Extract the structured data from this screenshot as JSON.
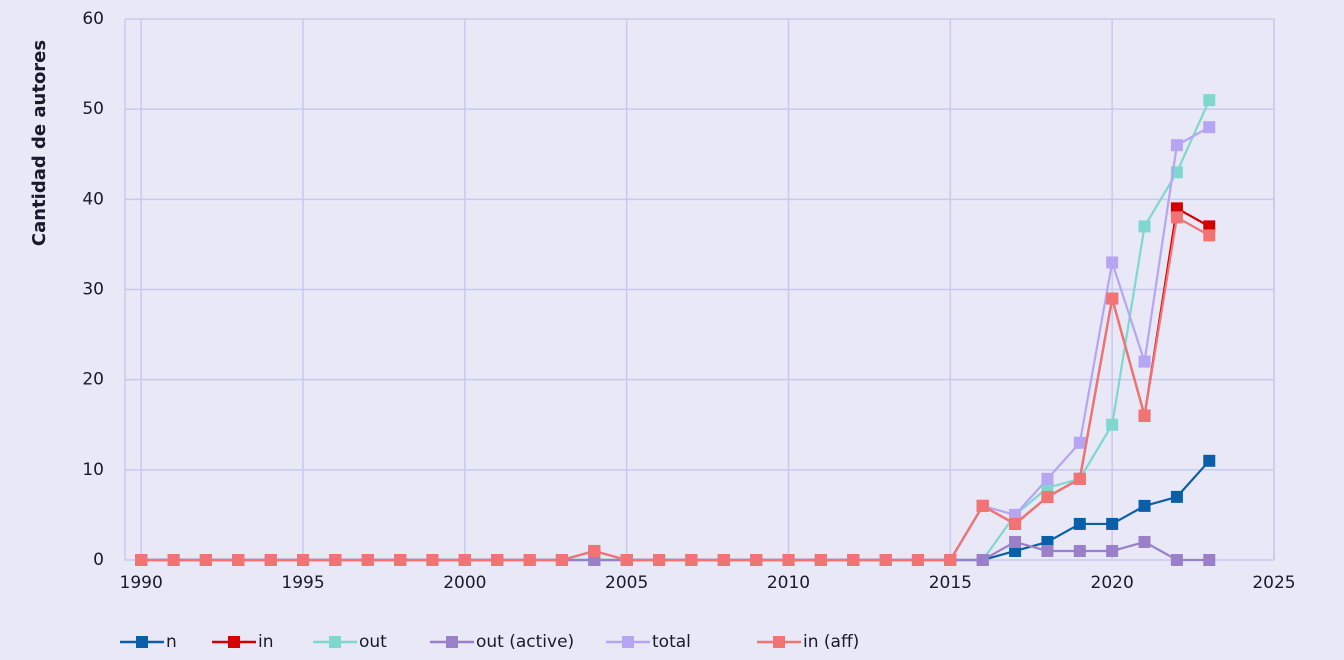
{
  "chart_data": {
    "type": "line",
    "y_label": "Cantidad de autores",
    "x": [
      1990,
      1991,
      1992,
      1993,
      1994,
      1995,
      1996,
      1997,
      1998,
      1999,
      2000,
      2001,
      2002,
      2003,
      2004,
      2005,
      2006,
      2007,
      2008,
      2009,
      2010,
      2011,
      2012,
      2013,
      2014,
      2015,
      2016,
      2017,
      2018,
      2019,
      2020,
      2021,
      2022,
      2023
    ],
    "series": [
      {
        "name": "n",
        "color": "#0b5ea8",
        "values": [
          0,
          0,
          0,
          0,
          0,
          0,
          0,
          0,
          0,
          0,
          0,
          0,
          0,
          0,
          0,
          0,
          0,
          0,
          0,
          0,
          0,
          0,
          0,
          0,
          0,
          0,
          0,
          1,
          2,
          4,
          4,
          6,
          7,
          11
        ]
      },
      {
        "name": "in",
        "color": "#d40000",
        "values": [
          0,
          0,
          0,
          0,
          0,
          0,
          0,
          0,
          0,
          0,
          0,
          0,
          0,
          0,
          1,
          0,
          0,
          0,
          0,
          0,
          0,
          0,
          0,
          0,
          0,
          0,
          6,
          4,
          7,
          9,
          29,
          16,
          39,
          37
        ]
      },
      {
        "name": "out",
        "color": "#7fd8d0",
        "values": [
          0,
          0,
          0,
          0,
          0,
          0,
          0,
          0,
          0,
          0,
          0,
          0,
          0,
          0,
          0,
          0,
          0,
          0,
          0,
          0,
          0,
          0,
          0,
          0,
          0,
          0,
          0,
          5,
          8,
          9,
          15,
          37,
          43,
          51
        ]
      },
      {
        "name": "out (active)",
        "color": "#9a80c8",
        "values": [
          0,
          0,
          0,
          0,
          0,
          0,
          0,
          0,
          0,
          0,
          0,
          0,
          0,
          0,
          0,
          0,
          0,
          0,
          0,
          0,
          0,
          0,
          0,
          0,
          0,
          0,
          0,
          2,
          1,
          1,
          1,
          2,
          0,
          0
        ]
      },
      {
        "name": "total",
        "color": "#b5a5f3",
        "values": [
          0,
          0,
          0,
          0,
          0,
          0,
          0,
          0,
          0,
          0,
          0,
          0,
          0,
          0,
          1,
          0,
          0,
          0,
          0,
          0,
          0,
          0,
          0,
          0,
          0,
          0,
          6,
          5,
          9,
          13,
          33,
          22,
          46,
          48
        ]
      },
      {
        "name": "in (aff)",
        "color": "#f27373",
        "values": [
          0,
          0,
          0,
          0,
          0,
          0,
          0,
          0,
          0,
          0,
          0,
          0,
          0,
          0,
          1,
          0,
          0,
          0,
          0,
          0,
          0,
          0,
          0,
          0,
          0,
          0,
          6,
          4,
          7,
          9,
          29,
          16,
          38,
          36
        ]
      }
    ],
    "xlim": [
      1989.5,
      2025
    ],
    "xticks": [
      1990,
      1995,
      2000,
      2005,
      2010,
      2015,
      2020,
      2025
    ],
    "ylim": [
      0,
      60
    ],
    "yticks": [
      0,
      10,
      20,
      30,
      40,
      50,
      60
    ],
    "grid": true,
    "legend": "bottom"
  }
}
